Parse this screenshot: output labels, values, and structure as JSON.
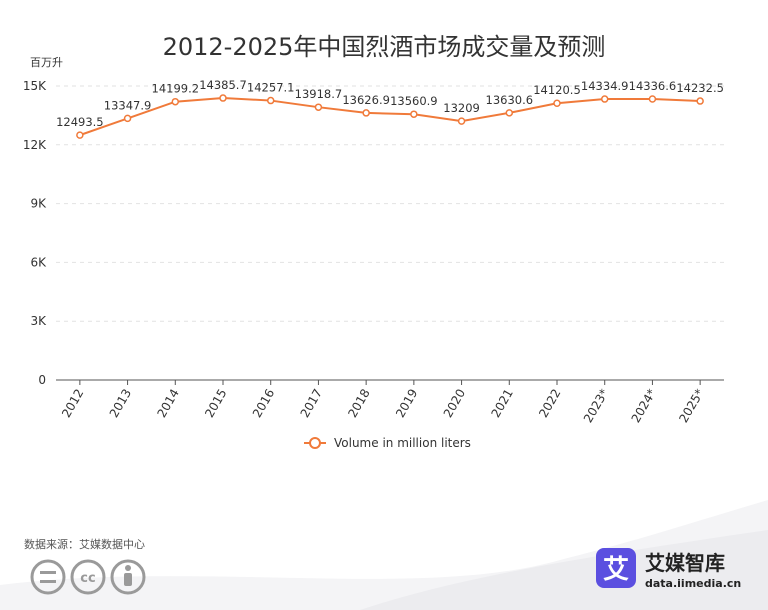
{
  "source": "数据来源：艾媒数据中心",
  "brand": {
    "name": "艾媒智库",
    "url": "data.iimedia.cn",
    "logo_char": "艾",
    "logo_color": "#5b4fe0"
  },
  "license_icons": [
    "equals-icon",
    "cc-icon",
    "person-icon"
  ],
  "chart_data": {
    "type": "line",
    "title": "2012-2025年中国烈酒市场成交量及预测",
    "unit": "百万升",
    "categories": [
      "2012",
      "2013",
      "2014",
      "2015",
      "2016",
      "2017",
      "2018",
      "2019",
      "2020",
      "2021",
      "2022",
      "2023*",
      "2024*",
      "2025*"
    ],
    "series": [
      {
        "name": "Volume in million liters",
        "color": "#f07a3a",
        "values": [
          12493.5,
          13347.9,
          14199.2,
          14385.7,
          14257.1,
          13918.7,
          13626.9,
          13560.9,
          13209,
          13630.6,
          14120.5,
          14334.9,
          14336.6,
          14232.5
        ],
        "labels": [
          "12493.5",
          "13347.9",
          "14199.2",
          "14385.7",
          "14257.1",
          "13918.7",
          "13626.9",
          "13560.9",
          "13209",
          "13630.6",
          "14120.5",
          "14334.9",
          "14336.6",
          "14232.5"
        ]
      }
    ],
    "yticks": [
      0,
      3000,
      6000,
      9000,
      12000,
      15000
    ],
    "ytick_labels": [
      "0",
      "3K",
      "6K",
      "9K",
      "12K",
      "15K"
    ],
    "ylim": [
      0,
      15000
    ],
    "grid": true,
    "legend": "bottom"
  }
}
